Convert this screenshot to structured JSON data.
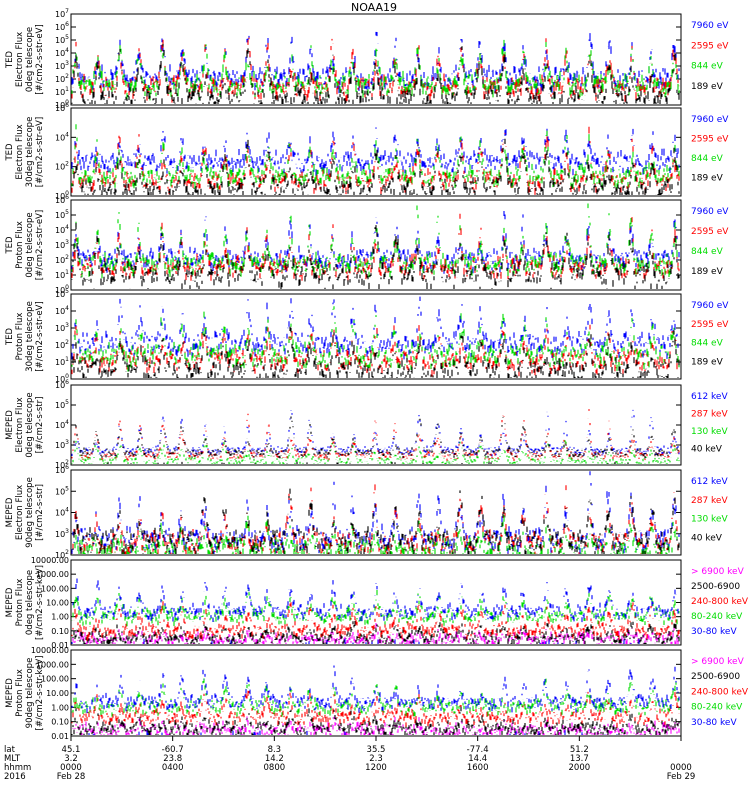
{
  "title": "NOAA19",
  "colors": {
    "black": "#000000",
    "blue": "#0000ff",
    "red": "#ff0000",
    "green": "#00dd00",
    "magenta": "#ff00ff"
  },
  "chart_data": [
    {
      "type": "line",
      "ylog": true,
      "ylim": [
        1,
        10000000
      ],
      "density": 46,
      "base": 0.35,
      "ytick_labels": [
        "10^0",
        "10^1",
        "10^2",
        "10^3",
        "10^4",
        "10^5",
        "10^6",
        "10^7"
      ],
      "ylabel_lines": [
        "TED",
        "Electron Flux",
        "0deg telescope",
        "[#/cm2-s-str-eV]"
      ],
      "series": [
        {
          "name": "7960 eV",
          "color": "#0000ff",
          "baseline": 100,
          "peak": 500000
        },
        {
          "name": "2595 eV",
          "color": "#ff0000",
          "baseline": 20,
          "peak": 200000
        },
        {
          "name": "844 eV",
          "color": "#00dd00",
          "baseline": 30,
          "peak": 100000
        },
        {
          "name": "189 eV",
          "color": "#000000",
          "baseline": 3,
          "peak": 50000
        }
      ]
    },
    {
      "type": "line",
      "ylog": true,
      "ylim": [
        1,
        1000000
      ],
      "density": 40,
      "base": 0.4,
      "ytick_labels": [
        "10^0",
        "10^2",
        "10^4",
        "10^6"
      ],
      "ylabel_lines": [
        "TED",
        "Electron Flux",
        "30deg telescope",
        "[#/cm2-s-str-eV]"
      ],
      "series": [
        {
          "name": "7960 eV",
          "color": "#0000ff",
          "baseline": 200,
          "peak": 50000
        },
        {
          "name": "2595 eV",
          "color": "#ff0000",
          "baseline": 10,
          "peak": 30000
        },
        {
          "name": "844 eV",
          "color": "#00dd00",
          "baseline": 20,
          "peak": 20000
        },
        {
          "name": "189 eV",
          "color": "#000000",
          "baseline": 3,
          "peak": 5000
        }
      ]
    },
    {
      "type": "line",
      "ylog": true,
      "ylim": [
        1,
        1000000
      ],
      "density": 40,
      "base": 0.5,
      "ytick_labels": [
        "10^0",
        "10^1",
        "10^2",
        "10^3",
        "10^4",
        "10^5",
        "10^6"
      ],
      "ylabel_lines": [
        "TED",
        "Proton Flux",
        "0deg telescope",
        "[#/cm2-s-str-eV]"
      ],
      "series": [
        {
          "name": "7960 eV",
          "color": "#0000ff",
          "baseline": 100,
          "peak": 100000
        },
        {
          "name": "2595 eV",
          "color": "#ff0000",
          "baseline": 30,
          "peak": 30000
        },
        {
          "name": "844 eV",
          "color": "#00dd00",
          "baseline": 50,
          "peak": 200000
        },
        {
          "name": "189 eV",
          "color": "#000000",
          "baseline": 10,
          "peak": 10000
        }
      ]
    },
    {
      "type": "line",
      "ylog": true,
      "ylim": [
        1,
        100000
      ],
      "density": 40,
      "base": 0.45,
      "ytick_labels": [
        "10^0",
        "10^1",
        "10^2",
        "10^3",
        "10^4",
        "10^5"
      ],
      "ylabel_lines": [
        "TED",
        "Proton Flux",
        "30deg telescope",
        "[#/cm2-s-str-eV]"
      ],
      "series": [
        {
          "name": "7960 eV",
          "color": "#0000ff",
          "baseline": 100,
          "peak": 30000
        },
        {
          "name": "2595 eV",
          "color": "#ff0000",
          "baseline": 10,
          "peak": 1000
        },
        {
          "name": "844 eV",
          "color": "#00dd00",
          "baseline": 20,
          "peak": 5000
        },
        {
          "name": "189 eV",
          "color": "#000000",
          "baseline": 3,
          "peak": 300
        }
      ]
    },
    {
      "type": "line",
      "ylog": true,
      "ylim": [
        100,
        1000000
      ],
      "density": 14,
      "base": 0.15,
      "ytick_labels": [
        "10^2",
        "10^3",
        "10^4",
        "10^5",
        "10^6"
      ],
      "ylabel_lines": [
        "MEPED",
        "Electron Flux",
        "0deg telescope",
        "[#/cm2-s-str]"
      ],
      "series": [
        {
          "name": "612 keV",
          "color": "#0000ff",
          "baseline": 500,
          "peak": 300000
        },
        {
          "name": "287 keV",
          "color": "#ff0000",
          "baseline": 300,
          "peak": 200000
        },
        {
          "name": "130 keV",
          "color": "#00dd00",
          "baseline": 150,
          "peak": 5000
        },
        {
          "name": "40 keV",
          "color": "#000000",
          "baseline": 400,
          "peak": 100000
        }
      ]
    },
    {
      "type": "line",
      "ylog": true,
      "ylim": [
        100,
        1000000
      ],
      "density": 38,
      "base": 0.4,
      "ytick_labels": [
        "10^2",
        "10^3",
        "10^4",
        "10^5",
        "10^6"
      ],
      "ylabel_lines": [
        "MEPED",
        "Electron Flux",
        "90deg telescope",
        "[#/cm2-s-str]"
      ],
      "series": [
        {
          "name": "612 keV",
          "color": "#0000ff",
          "baseline": 500,
          "peak": 500000
        },
        {
          "name": "287 keV",
          "color": "#ff0000",
          "baseline": 300,
          "peak": 200000
        },
        {
          "name": "130 keV",
          "color": "#00dd00",
          "baseline": 150,
          "peak": 5000
        },
        {
          "name": "40 keV",
          "color": "#000000",
          "baseline": 400,
          "peak": 100000
        }
      ]
    },
    {
      "type": "line",
      "ylog": true,
      "ylim": [
        0.01,
        10000
      ],
      "density": 30,
      "base": 0.25,
      "ytick_labels": [
        "0.01",
        "0.10",
        "1.00",
        "10.00",
        "100.00",
        "1000.00",
        "10000.00"
      ],
      "ylabel_lines": [
        "MEPED",
        "Proton Flux",
        "0deg telescope",
        "[#/cm2-s-str-keV]"
      ],
      "series": [
        {
          "name": "> 6900 keV",
          "color": "#ff00ff",
          "baseline": 0.02,
          "peak": 0.1
        },
        {
          "name": "2500-6900",
          "color": "#000000",
          "baseline": 0.03,
          "peak": 0.5
        },
        {
          "name": "240-800 keV",
          "color": "#ff0000",
          "baseline": 0.1,
          "peak": 20
        },
        {
          "name": "80-240 keV",
          "color": "#00dd00",
          "baseline": 1,
          "peak": 100
        },
        {
          "name": "30-80 keV",
          "color": "#0000ff",
          "baseline": 2,
          "peak": 1000
        }
      ]
    },
    {
      "type": "line",
      "ylog": true,
      "ylim": [
        0.01,
        10000
      ],
      "density": 30,
      "base": 0.25,
      "ytick_labels": [
        "0.01",
        "0.10",
        "1.00",
        "10.00",
        "100.00",
        "1000.00",
        "10000.00"
      ],
      "ylabel_lines": [
        "MEPED",
        "Proton Flux",
        "90deg telescope",
        "[#/cm2-s-str-keV]"
      ],
      "series": [
        {
          "name": "> 6900 keV",
          "color": "#ff00ff",
          "baseline": 0.02,
          "peak": 0.1
        },
        {
          "name": "2500-6900",
          "color": "#000000",
          "baseline": 0.03,
          "peak": 0.5
        },
        {
          "name": "240-800 keV",
          "color": "#ff0000",
          "baseline": 0.2,
          "peak": 20
        },
        {
          "name": "80-240 keV",
          "color": "#00dd00",
          "baseline": 1,
          "peak": 100
        },
        {
          "name": "30-80 keV",
          "color": "#0000ff",
          "baseline": 2,
          "peak": 1000
        }
      ]
    }
  ],
  "x_axis": {
    "row_labels": [
      "lat",
      "MLT",
      "hhmm",
      "2016"
    ],
    "columns": [
      {
        "lat": "45.1",
        "mlt": "3.2",
        "hhmm": "0000",
        "date": "Feb 28"
      },
      {
        "lat": "-60.7",
        "mlt": "23.8",
        "hhmm": "0400",
        "date": ""
      },
      {
        "lat": "8.3",
        "mlt": "14.2",
        "hhmm": "0800",
        "date": ""
      },
      {
        "lat": "35.5",
        "mlt": "2.3",
        "hhmm": "1200",
        "date": ""
      },
      {
        "lat": "-77.4",
        "mlt": "14.4",
        "hhmm": "1600",
        "date": ""
      },
      {
        "lat": "51.2",
        "mlt": "13.7",
        "hhmm": "2000",
        "date": ""
      },
      {
        "lat": "",
        "mlt": "",
        "hhmm": "0000",
        "date": "Feb 29"
      }
    ]
  }
}
